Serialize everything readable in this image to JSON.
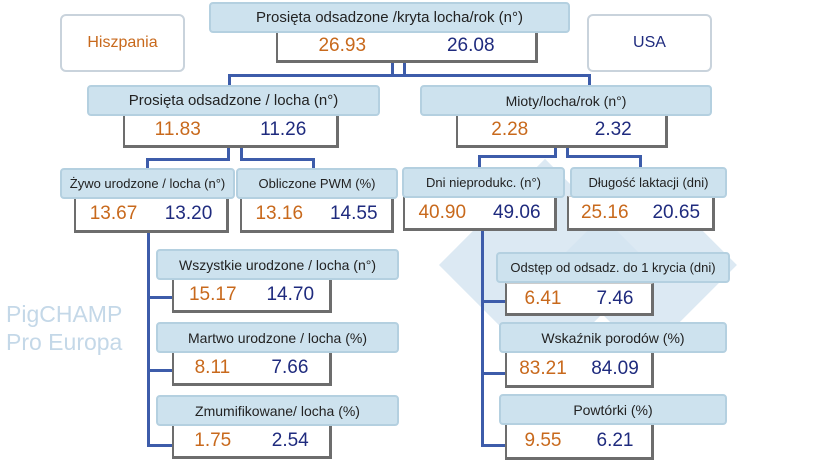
{
  "colors": {
    "spain": "#c8691c",
    "usa": "#1f2b7e",
    "header_bg": "#cde2ee",
    "connector": "#3d5caa"
  },
  "legend": {
    "spain": "Hiszpania",
    "usa": "USA"
  },
  "watermark": "PigCHAMP Pro Europa",
  "nodes": {
    "top": {
      "label": "Prosięta odsadzone /kryta locha/rok (n°)",
      "es": "26.93",
      "us": "26.08"
    },
    "weaned_sow": {
      "label": "Prosięta odsadzone / locha (n°)",
      "es": "11.83",
      "us": "11.26"
    },
    "litters": {
      "label": "Mioty/locha/rok (n°)",
      "es": "2.28",
      "us": "2.32"
    },
    "born_alive": {
      "label": "Żywo urodzone / locha (n°)",
      "es": "13.67",
      "us": "13.20"
    },
    "pwm": {
      "label": "Obliczone PWM (%)",
      "es": "13.16",
      "us": "14.55"
    },
    "npd": {
      "label": "Dni nieprodukc. (n°)",
      "es": "40.90",
      "us": "49.06"
    },
    "lactation": {
      "label": "Długość laktacji (dni)",
      "es": "25.16",
      "us": "20.65"
    },
    "total_born": {
      "label": "Wszystkie urodzone / locha (n°)",
      "es": "15.17",
      "us": "14.70"
    },
    "stillborn": {
      "label": "Martwo urodzone / locha (%)",
      "es": "8.11",
      "us": "7.66"
    },
    "mummified": {
      "label": "Zmumifikowane/ locha (%)",
      "es": "1.75",
      "us": "2.54"
    },
    "wean_service": {
      "label": "Odstęp od odsadz. do 1 krycia (dni)",
      "es": "6.41",
      "us": "7.46"
    },
    "farrowing_rate": {
      "label": "Wskaźnik porodów (%)",
      "es": "83.21",
      "us": "84.09"
    },
    "repeats": {
      "label": "Powtórki (%)",
      "es": "9.55",
      "us": "6.21"
    }
  }
}
